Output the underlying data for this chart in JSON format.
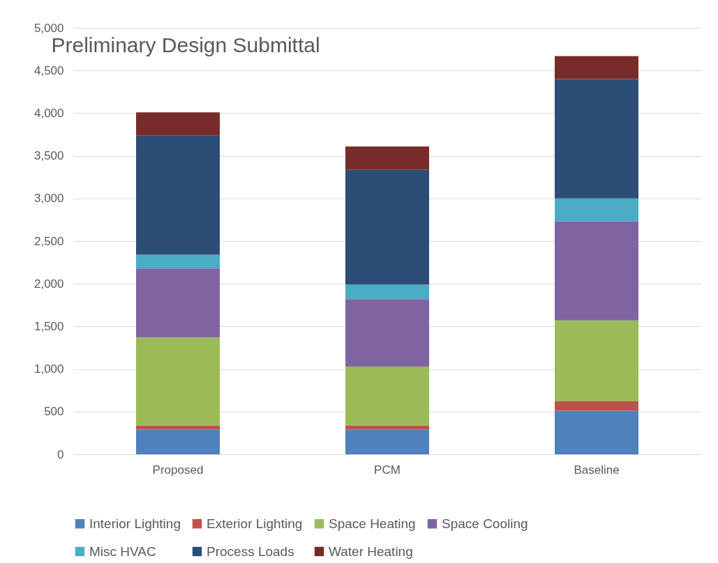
{
  "chart_data": {
    "type": "bar",
    "title": "Preliminary Design Submittal",
    "categories": [
      "Proposed",
      "PCM",
      "Baseline"
    ],
    "stacked": true,
    "series": [
      {
        "name": "Interior Lighting",
        "color": "#4f81bd",
        "values": [
          290,
          290,
          510
        ]
      },
      {
        "name": "Exterior Lighting",
        "color": "#c0504d",
        "values": [
          50,
          50,
          110
        ]
      },
      {
        "name": "Space Heating",
        "color": "#9bbb59",
        "values": [
          1030,
          690,
          950
        ]
      },
      {
        "name": "Space Cooling",
        "color": "#8064a2",
        "values": [
          810,
          790,
          1160
        ]
      },
      {
        "name": "Misc HVAC",
        "color": "#4bacc6",
        "values": [
          160,
          170,
          270
        ]
      },
      {
        "name": "Process Loads",
        "color": "#2c4d75",
        "values": [
          1400,
          1350,
          1400
        ]
      },
      {
        "name": "Water Heating",
        "color": "#772c2a",
        "values": [
          270,
          270,
          270
        ]
      }
    ],
    "ylim": [
      0,
      5000
    ],
    "yticks": [
      0,
      500,
      {
        "value": 1000,
        "label": "1,000"
      },
      {
        "value": 1500,
        "label": "1,500"
      },
      {
        "value": 2000,
        "label": "2,000"
      },
      {
        "value": 2500,
        "label": "2,500"
      },
      {
        "value": 3000,
        "label": "3,000"
      },
      {
        "value": 3500,
        "label": "3,500"
      },
      {
        "value": 4000,
        "label": "4,000"
      },
      {
        "value": 4500,
        "label": "4,500"
      },
      {
        "value": 5000,
        "label": "5,000"
      }
    ],
    "grid": "y",
    "legend": "bottom"
  }
}
